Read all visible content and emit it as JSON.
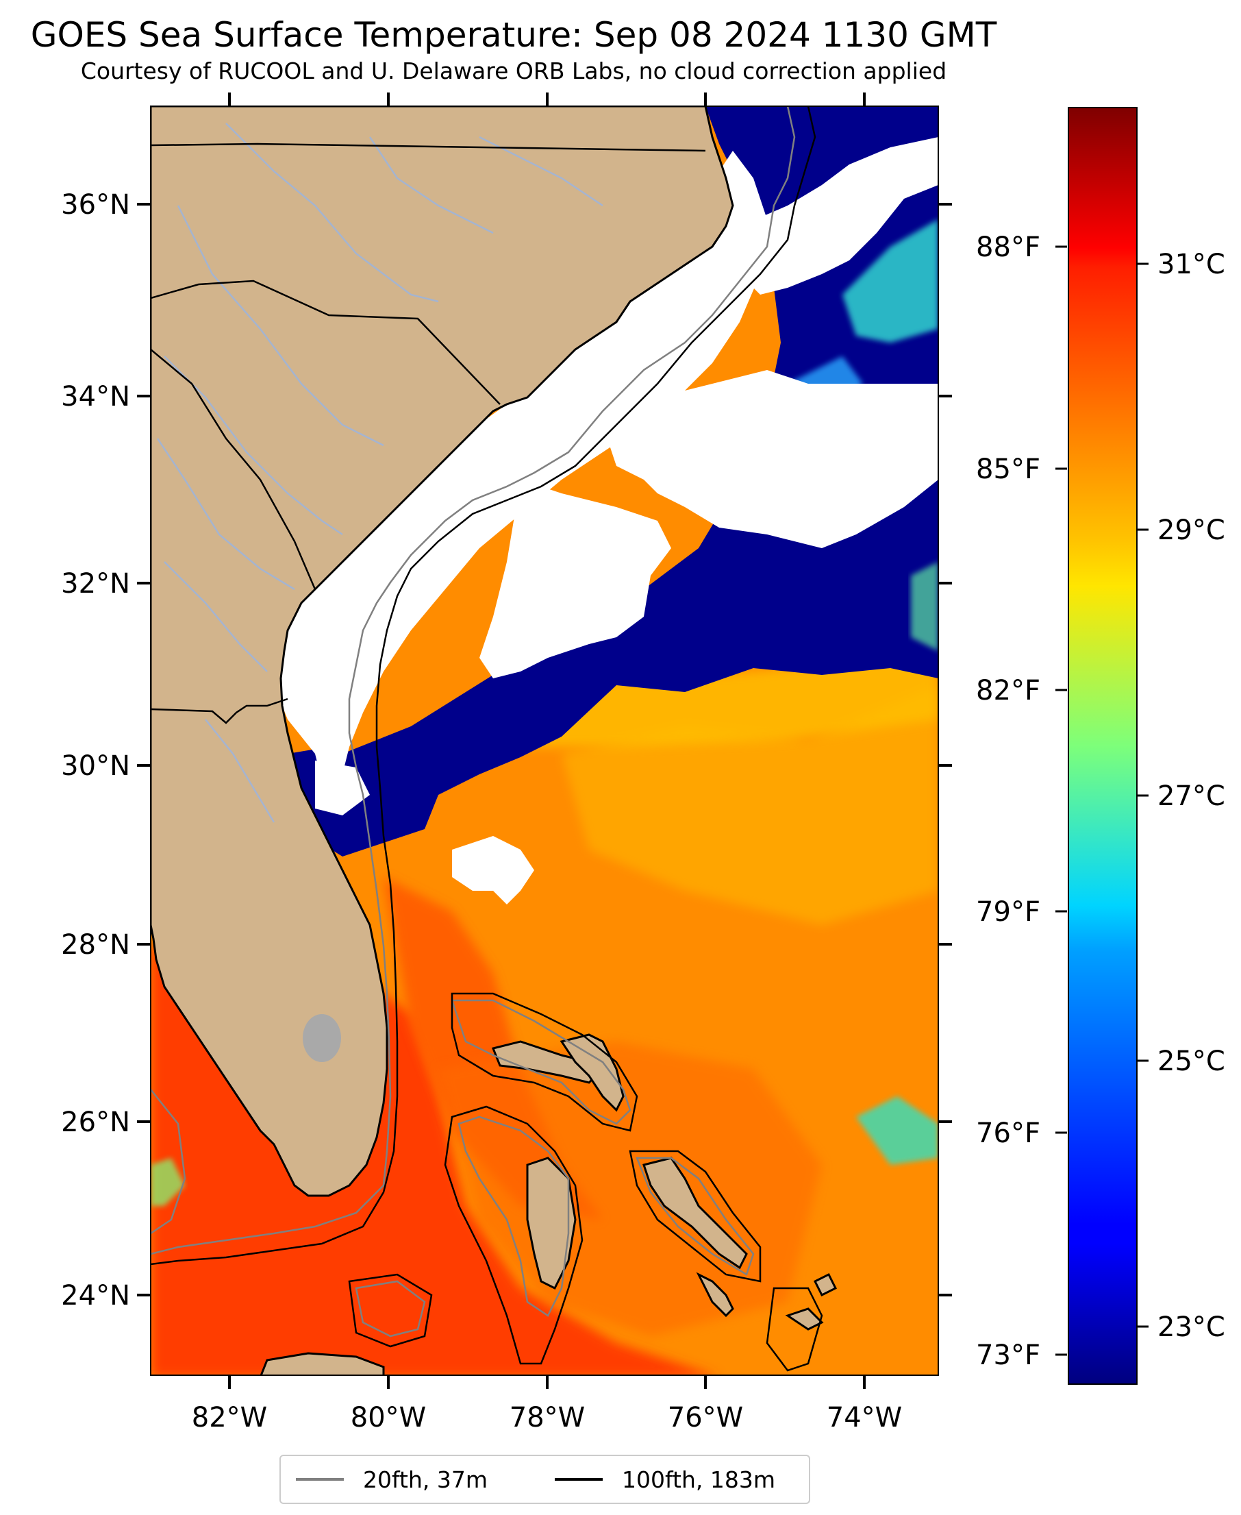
{
  "title": "GOES Sea Surface Temperature: Sep 08 2024 1130 GMT",
  "subtitle": "Courtesy of RUCOOL and U. Delaware ORB Labs, no cloud correction applied",
  "colors": {
    "land": "#d2b48c",
    "cloud": "#ffffff",
    "cold_water": "#00008b",
    "warm_water": "#ff8c00",
    "hot_water": "#ff3d00",
    "isobath_20fth": "#808080",
    "isobath_100fth": "#000000",
    "river": "#a0b4d8",
    "lake": "#a9a9a9"
  },
  "map": {
    "lon_range": [
      -83,
      -73
    ],
    "lat_range": [
      23.1,
      37
    ],
    "lat_ticks": [
      "36°N",
      "34°N",
      "32°N",
      "30°N",
      "28°N",
      "26°N",
      "24°N"
    ],
    "lon_ticks": [
      "82°W",
      "80°W",
      "78°W",
      "76°W",
      "74°W"
    ],
    "fahrenheit_ticks": [
      "88°F",
      "85°F",
      "82°F",
      "79°F",
      "76°F",
      "73°F"
    ]
  },
  "colorbar": {
    "colormap": "jet",
    "celsius_ticks": [
      "31°C",
      "29°C",
      "27°C",
      "25°C",
      "23°C"
    ]
  },
  "legend": {
    "items": [
      {
        "label": "20fth, 37m",
        "color": "#808080"
      },
      {
        "label": "100fth, 183m",
        "color": "#000000"
      }
    ]
  }
}
